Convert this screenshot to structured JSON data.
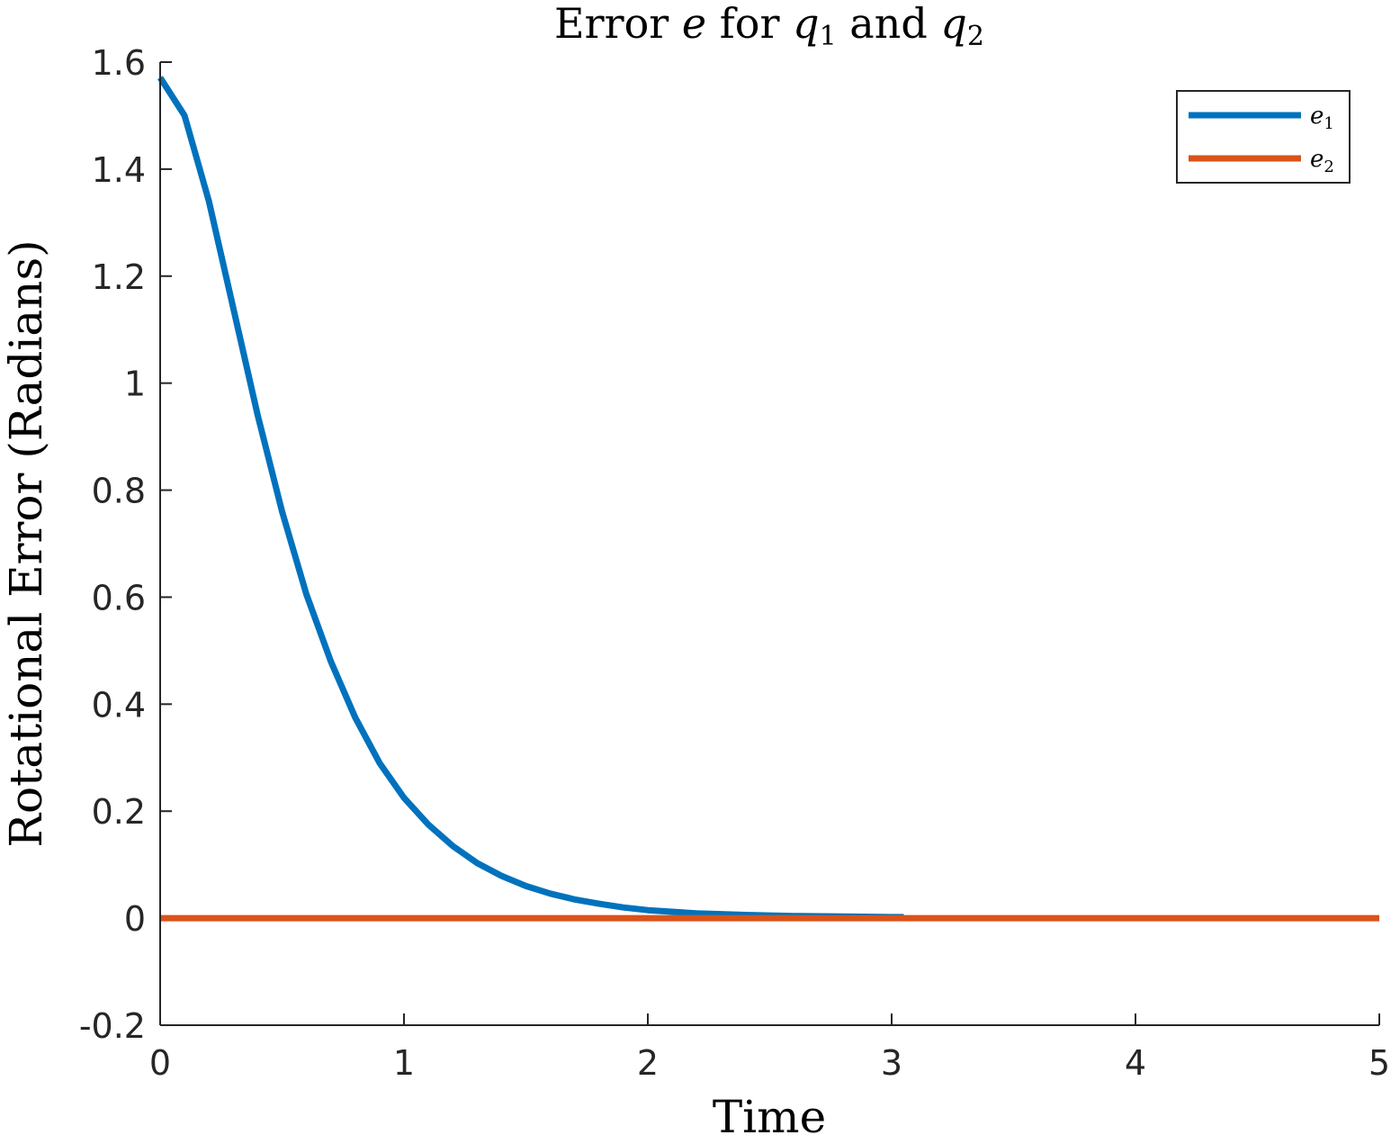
{
  "chart_data": {
    "type": "line",
    "title": {
      "prefix": "Error ",
      "var_e": "e",
      "mid": " for ",
      "var_q1": "q",
      "sub1": "1",
      "and": " and ",
      "var_q2": "q",
      "sub2": "2"
    },
    "xlabel": "Time",
    "ylabel": "Rotational Error (Radians)",
    "xlim": [
      0,
      5
    ],
    "ylim": [
      -0.2,
      1.6
    ],
    "xticks": [
      0,
      1,
      2,
      3,
      4,
      5
    ],
    "yticks": [
      -0.2,
      0,
      0.2,
      0.4,
      0.6,
      0.8,
      1,
      1.2,
      1.4,
      1.6
    ],
    "grid": false,
    "legend_position": "top-right",
    "series": [
      {
        "name": "e",
        "name_sub": "1",
        "color": "#0072BD",
        "x": [
          0,
          0.1,
          0.2,
          0.3,
          0.4,
          0.5,
          0.6,
          0.7,
          0.8,
          0.9,
          1.0,
          1.1,
          1.2,
          1.3,
          1.4,
          1.5,
          1.6,
          1.7,
          1.8,
          1.9,
          2.0,
          2.2,
          2.4,
          2.6,
          2.8,
          3.0,
          3.05
        ],
        "y": [
          1.571,
          1.5,
          1.34,
          1.14,
          0.94,
          0.76,
          0.605,
          0.48,
          0.375,
          0.29,
          0.225,
          0.175,
          0.135,
          0.103,
          0.079,
          0.06,
          0.046,
          0.035,
          0.027,
          0.02,
          0.015,
          0.009,
          0.006,
          0.004,
          0.003,
          0.002,
          0.002
        ]
      },
      {
        "name": "e",
        "name_sub": "2",
        "color": "#D95319",
        "x": [
          0,
          5
        ],
        "y": [
          0,
          0
        ]
      }
    ]
  },
  "colors": {
    "axis": "#262626",
    "background": "#ffffff"
  }
}
